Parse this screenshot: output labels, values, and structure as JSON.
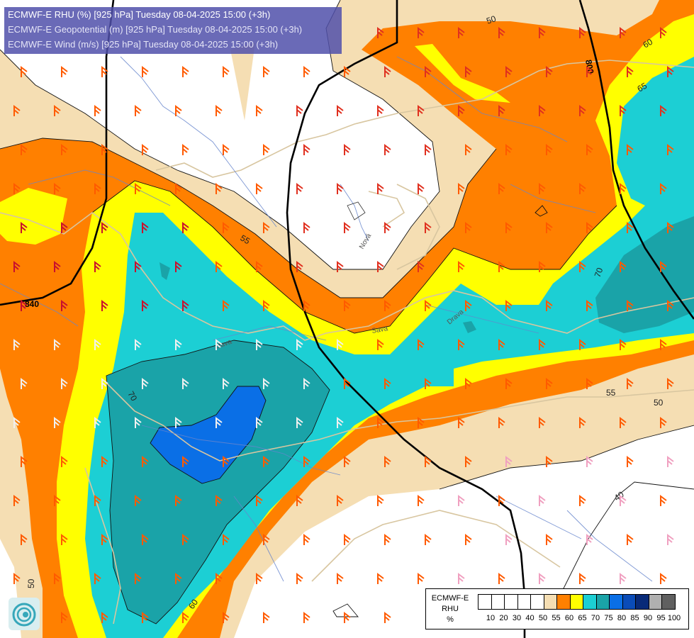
{
  "header": {
    "line1": "ECMWF-E RHU (%) [925 hPa] Tuesday 08-04-2025 15:00 (+3h)",
    "line2": "ECMWF-E Geopotential (m) [925 hPa] Tuesday 08-04-2025 15:00 (+3h)",
    "line3": "ECMWF-E Wind (m/s) [925 hPa] Tuesday 08-04-2025 15:00 (+3h)"
  },
  "legend": {
    "model": "ECMWF-E",
    "param": "RHU",
    "unit": "%",
    "levels": [
      "10",
      "20",
      "30",
      "40",
      "50",
      "55",
      "60",
      "65",
      "70",
      "75",
      "80",
      "85",
      "90",
      "95",
      "100"
    ],
    "colors": [
      "#ffffff",
      "#ffffff",
      "#ffffff",
      "#ffffff",
      "#ffffff",
      "#f5deb3",
      "#ff8000",
      "#ffff00",
      "#1ccfd4",
      "#1aa3a8",
      "#0a6fe6",
      "#0a4cb8",
      "#082a78",
      "#b0b0b0",
      "#606060"
    ]
  },
  "contours": {
    "rhu_labels": [
      "50",
      "60",
      "65",
      "55",
      "55",
      "70",
      "70",
      "50",
      "40",
      "50",
      "60"
    ],
    "geo_labels": [
      "800",
      "840"
    ]
  },
  "map_text": {
    "river_labels": [
      "Nová",
      "Sava",
      "Drava",
      "Sava"
    ]
  },
  "palette": {
    "band55": "#f5deb3",
    "band60": "#ff8000",
    "band65": "#ffff00",
    "band70": "#1ccfd4",
    "band75": "#1aa3a8",
    "band80": "#0a6fe6",
    "border": "#d8c6a0",
    "river": "#5577cc",
    "geopotential": "#000000"
  }
}
